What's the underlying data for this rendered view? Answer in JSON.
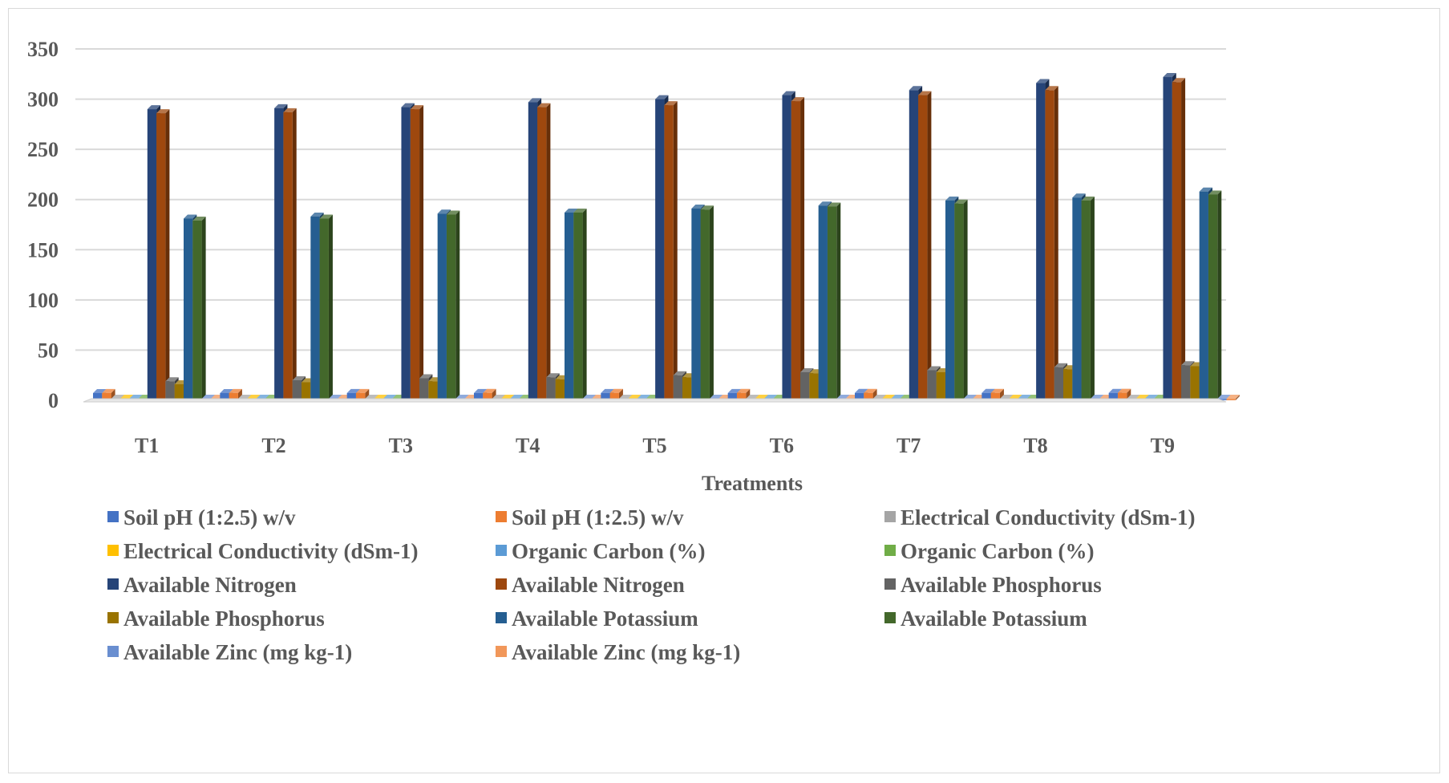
{
  "chart_data": {
    "type": "bar",
    "title": "",
    "xlabel": "Treatments",
    "ylabel": "",
    "ylim": [
      0,
      350
    ],
    "yticks": [
      0,
      50,
      100,
      150,
      200,
      250,
      300,
      350
    ],
    "grid": true,
    "legend_position": "bottom",
    "categories": [
      "T1",
      "T2",
      "T3",
      "T4",
      "T5",
      "T6",
      "T7",
      "T8",
      "T9"
    ],
    "series": [
      {
        "name": "Soil pH (1:2.5) w/v",
        "color": "#4472C4",
        "values": [
          7.2,
          7.2,
          7.3,
          7.3,
          7.3,
          7.3,
          7.4,
          7.4,
          7.4
        ]
      },
      {
        "name": "Soil pH (1:2.5) w/v",
        "color": "#ED7D31",
        "values": [
          7.3,
          7.3,
          7.3,
          7.4,
          7.4,
          7.4,
          7.4,
          7.4,
          7.5
        ]
      },
      {
        "name": "Electrical Conductivity (dSm-1)",
        "color": "#A5A5A5",
        "values": [
          0.3,
          0.3,
          0.3,
          0.3,
          0.3,
          0.3,
          0.3,
          0.3,
          0.3
        ]
      },
      {
        "name": "Electrical Conductivity (dSm-1)",
        "color": "#FFC000",
        "values": [
          0.3,
          0.3,
          0.3,
          0.3,
          0.3,
          0.3,
          0.3,
          0.3,
          0.3
        ]
      },
      {
        "name": "Organic Carbon (%)",
        "color": "#5B9BD5",
        "values": [
          0.5,
          0.5,
          0.5,
          0.5,
          0.5,
          0.5,
          0.5,
          0.5,
          0.5
        ]
      },
      {
        "name": "Organic Carbon (%)",
        "color": "#70AD47",
        "values": [
          0.5,
          0.5,
          0.5,
          0.5,
          0.5,
          0.5,
          0.5,
          0.5,
          0.5
        ]
      },
      {
        "name": "Available Nitrogen",
        "color": "#264478",
        "values": [
          290,
          291,
          292,
          297,
          300,
          304,
          309,
          316,
          322
        ]
      },
      {
        "name": "Available Nitrogen",
        "color": "#9E480E",
        "values": [
          286,
          287,
          290,
          292,
          294,
          298,
          304,
          309,
          317
        ]
      },
      {
        "name": "Available Phosphorus",
        "color": "#636363",
        "values": [
          19,
          20,
          22,
          23,
          25,
          28,
          30,
          33,
          35
        ]
      },
      {
        "name": "Available Phosphorus",
        "color": "#997300",
        "values": [
          16,
          18,
          19,
          21,
          23,
          27,
          28,
          31,
          34
        ]
      },
      {
        "name": "Available Potassium",
        "color": "#255E91",
        "values": [
          181,
          183,
          186,
          187,
          191,
          194,
          199,
          202,
          208
        ]
      },
      {
        "name": "Available Potassium",
        "color": "#43682B",
        "values": [
          179,
          181,
          185,
          187,
          190,
          193,
          196,
          199,
          205
        ]
      },
      {
        "name": "Available Zinc (mg kg-1)",
        "color": "#698ED0",
        "values": [
          0.9,
          0.9,
          0.9,
          0.9,
          0.9,
          0.9,
          0.9,
          0.9,
          0.9
        ]
      },
      {
        "name": "Available Zinc (mg kg-1)",
        "color": "#F1975A",
        "values": [
          0.9,
          0.9,
          0.9,
          0.9,
          0.9,
          0.9,
          0.9,
          0.9,
          0.9
        ]
      }
    ]
  }
}
